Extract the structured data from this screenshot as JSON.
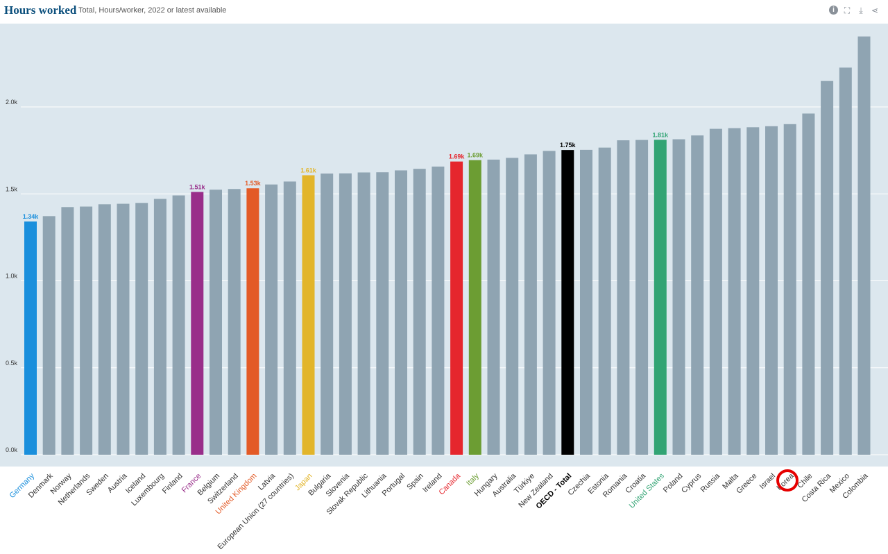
{
  "header": {
    "title": "Hours worked",
    "subtitle": "Total, Hours/worker, 2022 or latest available",
    "tools": [
      {
        "name": "info-icon",
        "glyph": "i"
      },
      {
        "name": "fullscreen-icon",
        "glyph": "⛶"
      },
      {
        "name": "download-icon",
        "glyph": "⤓"
      },
      {
        "name": "share-icon",
        "glyph": "⋖"
      }
    ]
  },
  "colors": {
    "plot_bg": "#dce7ee",
    "default_bar": "#8fa4b2",
    "gridline": "#ffffff",
    "axis_text": "#333333"
  },
  "chart_data": {
    "type": "bar",
    "title": "Hours worked",
    "subtitle": "Total, Hours/worker, 2022 or latest available",
    "xlabel": "",
    "ylabel": "",
    "ylim": [
      0,
      2400
    ],
    "yticks": [
      {
        "value": 0,
        "label": "0.0k"
      },
      {
        "value": 500,
        "label": "0.5k"
      },
      {
        "value": 1000,
        "label": "1.0k"
      },
      {
        "value": 1500,
        "label": "1.5k"
      },
      {
        "value": 2000,
        "label": "2.0k"
      }
    ],
    "grid": true,
    "categories": [
      "Germany",
      "Denmark",
      "Norway",
      "Netherlands",
      "Sweden",
      "Austria",
      "Iceland",
      "Luxembourg",
      "Finland",
      "France",
      "Belgium",
      "Switzerland",
      "United Kingdom",
      "Latvia",
      "European Union (27 countries)",
      "Japan",
      "Bulgaria",
      "Slovenia",
      "Slovak Republic",
      "Lithuania",
      "Portugal",
      "Spain",
      "Ireland",
      "Canada",
      "Italy",
      "Hungary",
      "Australia",
      "Türkiye",
      "New Zealand",
      "OECD - Total",
      "Czechia",
      "Estonia",
      "Romania",
      "Croatia",
      "United States",
      "Poland",
      "Cyprus",
      "Russia",
      "Malta",
      "Greece",
      "Israel",
      "Korea",
      "Chile",
      "Costa Rica",
      "Mexico",
      "Colombia"
    ],
    "values": [
      1341,
      1372,
      1424,
      1427,
      1440,
      1443,
      1448,
      1471,
      1491,
      1511,
      1524,
      1528,
      1532,
      1554,
      1571,
      1607,
      1617,
      1618,
      1623,
      1624,
      1635,
      1644,
      1657,
      1686,
      1694,
      1697,
      1707,
      1727,
      1747,
      1752,
      1753,
      1766,
      1808,
      1810,
      1811,
      1814,
      1836,
      1874,
      1878,
      1883,
      1889,
      1901,
      1962,
      2149,
      2226,
      2405
    ],
    "highlights": [
      {
        "category": "Germany",
        "color": "#1a8fdc",
        "label": "1.34k"
      },
      {
        "category": "France",
        "color": "#992e8a",
        "label": "1.51k"
      },
      {
        "category": "United Kingdom",
        "color": "#e35a26",
        "label": "1.53k"
      },
      {
        "category": "Japan",
        "color": "#e2b52a",
        "label": "1.61k"
      },
      {
        "category": "Canada",
        "color": "#e5262d",
        "label": "1.69k"
      },
      {
        "category": "Italy",
        "color": "#6c9d33",
        "label": "1.69k"
      },
      {
        "category": "OECD - Total",
        "color": "#000000",
        "label": "1.75k"
      },
      {
        "category": "United States",
        "color": "#32a474",
        "label": "1.81k"
      }
    ],
    "annotations": [
      {
        "category": "Korea",
        "type": "circle",
        "color": "#e60000"
      }
    ]
  }
}
